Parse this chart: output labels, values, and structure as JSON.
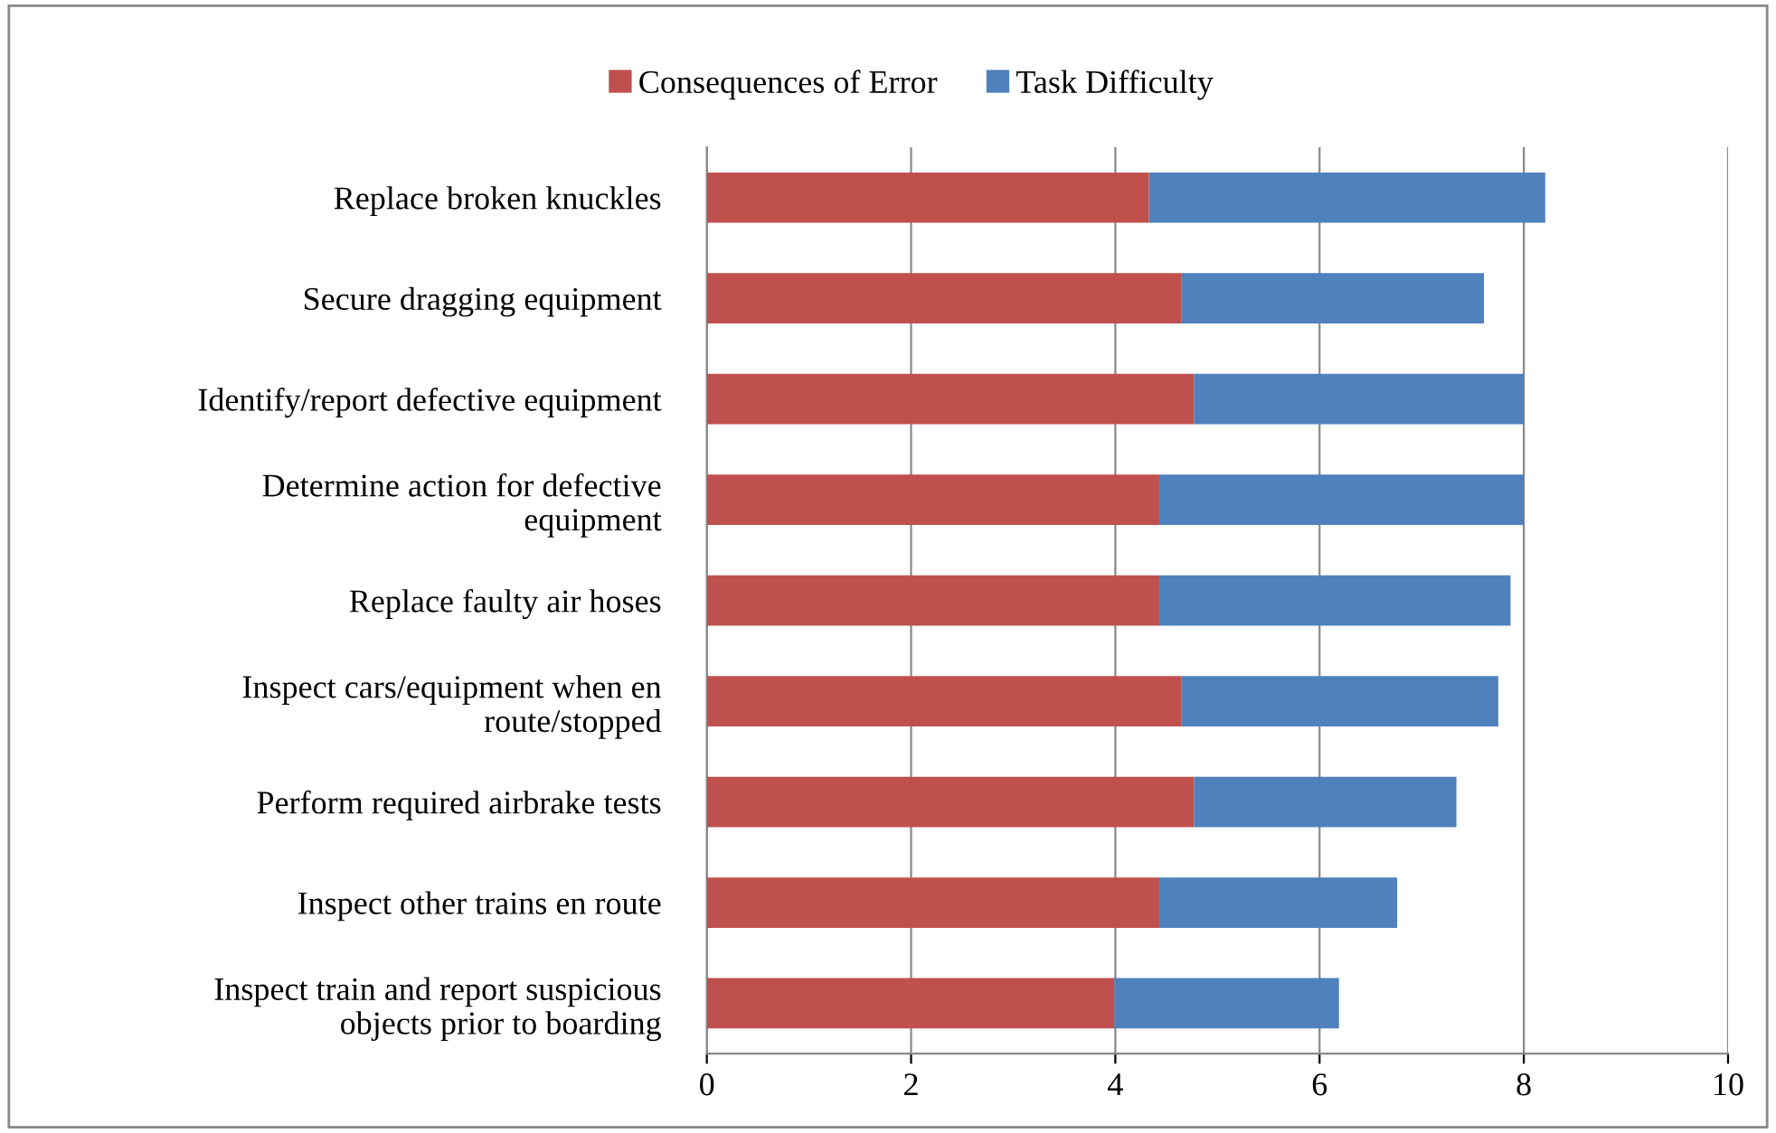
{
  "chart_data": {
    "type": "bar",
    "orientation": "horizontal",
    "stacked": true,
    "categories": [
      "Replace broken knuckles",
      "Secure dragging equipment",
      "Identify/report defective equipment",
      "Determine action for defective\nequipment",
      "Replace faulty air hoses",
      "Inspect cars/equipment when en\nroute/stopped",
      "Perform required airbrake tests",
      "Inspect other trains en route",
      "Inspect train and report suspicious\nobjects prior to boarding"
    ],
    "series": [
      {
        "name": "Consequences of Error",
        "color": "#c0504d",
        "values": [
          4.33,
          4.65,
          4.77,
          4.43,
          4.43,
          4.65,
          4.77,
          4.43,
          3.99
        ]
      },
      {
        "name": "Task Difficulty",
        "color": "#4f81bd",
        "values": [
          3.88,
          2.96,
          3.23,
          3.57,
          3.44,
          3.1,
          2.57,
          2.33,
          2.2
        ]
      }
    ],
    "xlim": [
      0,
      10
    ],
    "xticks": [
      0,
      2,
      4,
      6,
      8,
      10
    ],
    "grid": "x",
    "legend": "top"
  }
}
